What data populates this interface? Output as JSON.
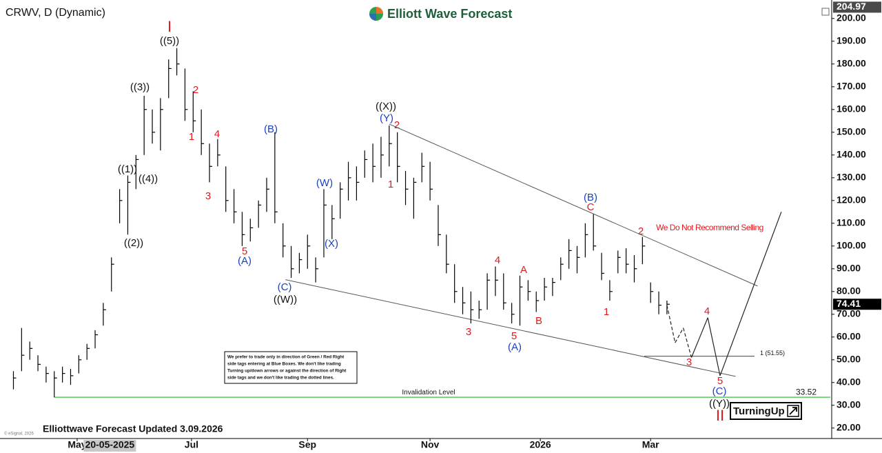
{
  "chart_data": {
    "type": "ohlc",
    "title": "CRWV, D (Dynamic)",
    "x": [
      0,
      1,
      2,
      3,
      4,
      5,
      6,
      7,
      8,
      9,
      10,
      11,
      12,
      13,
      14,
      15,
      16,
      17,
      18,
      19,
      20,
      21,
      22,
      23,
      24,
      25,
      26,
      27,
      28,
      29,
      30,
      31,
      32,
      33,
      34,
      35,
      36,
      37,
      38,
      39,
      40,
      41,
      42,
      43,
      44,
      45,
      46,
      47,
      48,
      49,
      50,
      51,
      52,
      53,
      54,
      55,
      56,
      57,
      58,
      59,
      60,
      61,
      62,
      63,
      64,
      65,
      66,
      67,
      68,
      69,
      70,
      71,
      72,
      73,
      74,
      75,
      76,
      77,
      78,
      79,
      80
    ],
    "high": [
      45,
      64,
      58,
      52,
      47,
      45,
      47,
      46,
      52,
      57,
      63,
      75,
      95,
      125,
      131,
      140,
      166,
      160,
      165,
      182,
      187,
      178,
      168,
      160,
      145,
      147,
      135,
      125,
      115,
      112,
      120,
      130,
      150,
      110,
      100,
      97,
      105,
      95,
      125,
      118,
      128,
      137,
      135,
      142,
      145,
      148,
      153,
      150,
      133,
      130,
      141,
      137,
      118,
      105,
      92,
      82,
      80,
      76,
      88,
      91,
      88,
      75,
      87,
      85,
      80,
      86,
      86,
      95,
      103,
      100,
      110,
      114,
      97,
      85,
      98,
      99,
      96,
      104,
      84,
      80,
      76
    ],
    "low": [
      37,
      45,
      50,
      45,
      40,
      33.5,
      40,
      39,
      44,
      50,
      55,
      65,
      80,
      110,
      105,
      125,
      140,
      145,
      142,
      165,
      175,
      155,
      150,
      140,
      128,
      135,
      115,
      110,
      100,
      102,
      108,
      115,
      110,
      95,
      86,
      88,
      90,
      84,
      95,
      103,
      112,
      120,
      120,
      130,
      128,
      130,
      135,
      128,
      118,
      112,
      128,
      120,
      100,
      88,
      75,
      70,
      66,
      68,
      72,
      78,
      72,
      66,
      65,
      76,
      71,
      76,
      78,
      85,
      90,
      88,
      95,
      98,
      85,
      76,
      88,
      88,
      84,
      92,
      75,
      70,
      70
    ],
    "close": [
      42,
      52,
      55,
      48,
      44,
      42,
      44,
      43,
      50,
      55,
      61,
      72,
      92,
      120,
      128,
      138,
      160,
      150,
      160,
      178,
      180,
      160,
      155,
      145,
      135,
      140,
      120,
      115,
      105,
      108,
      118,
      125,
      115,
      100,
      90,
      94,
      100,
      90,
      118,
      112,
      125,
      130,
      128,
      138,
      135,
      140,
      145,
      135,
      125,
      128,
      135,
      125,
      105,
      92,
      80,
      75,
      72,
      72,
      85,
      85,
      75,
      70,
      82,
      80,
      76,
      82,
      84,
      92,
      98,
      95,
      105,
      100,
      88,
      80,
      95,
      92,
      90,
      100,
      80,
      74,
      74.41
    ],
    "color": "#000000",
    "projection": {
      "x": [
        80,
        81,
        82,
        83,
        85,
        86.5,
        94
      ],
      "values": [
        74,
        57.5,
        64,
        51,
        68.5,
        43,
        115
      ]
    },
    "trendlines": [
      {
        "x": [
          46,
          91.1
        ],
        "values": [
          153.6,
          82.4
        ]
      },
      {
        "x": [
          33.3,
          88.4
        ],
        "values": [
          85.2,
          42.7
        ]
      }
    ],
    "invalidation": {
      "label": "Invalidation Level",
      "value": 33.52,
      "color": "#5cc85c"
    },
    "fib_level": {
      "label": "1 (51.55)",
      "value": 51.55
    },
    "top_label": 204.97,
    "cursor": {
      "x": 11.8,
      "label": "20-05-2025"
    },
    "xlim": [
      -0.8,
      100
    ],
    "xticks": [
      {
        "value": 7.8,
        "label": "May"
      },
      {
        "value": 21.8,
        "label": "Jul"
      },
      {
        "value": 36,
        "label": "Sep"
      },
      {
        "value": 51,
        "label": "Nov"
      },
      {
        "value": 64.5,
        "label": "2026"
      },
      {
        "value": 78,
        "label": "Mar"
      }
    ],
    "ylim": [
      16,
      206
    ],
    "yticks": [
      {
        "value": 20,
        "label": "20.00"
      },
      {
        "value": 30,
        "label": "30.00"
      },
      {
        "value": 40,
        "label": "40.00"
      },
      {
        "value": 50,
        "label": "50.00"
      },
      {
        "value": 60,
        "label": "60.00"
      },
      {
        "value": 70,
        "label": "70.00"
      },
      {
        "value": 80,
        "label": "80.00"
      },
      {
        "value": 90,
        "label": "90.00"
      },
      {
        "value": 100,
        "label": "100.00"
      },
      {
        "value": 110,
        "label": "110.00"
      },
      {
        "value": 120,
        "label": "120.00"
      },
      {
        "value": 130,
        "label": "130.00"
      },
      {
        "value": 140,
        "label": "140.00"
      },
      {
        "value": 150,
        "label": "150.00"
      },
      {
        "value": 160,
        "label": "160.00"
      },
      {
        "value": 170,
        "label": "170.00"
      },
      {
        "value": 180,
        "label": "180.00"
      },
      {
        "value": 190,
        "label": "190.00"
      },
      {
        "value": 200,
        "label": "200.00"
      }
    ],
    "annotations": [
      {
        "text": "I",
        "color": "#e0191f"
      },
      {
        "text": "2",
        "color": "#e0191f"
      },
      {
        "text": "1",
        "color": "#e0191f"
      },
      {
        "text": "4",
        "color": "#e0191f"
      },
      {
        "text": "3",
        "color": "#e0191f"
      },
      {
        "text": "5",
        "color": "#e0191f"
      },
      {
        "text": "2",
        "color": "#e0191f"
      },
      {
        "text": "1",
        "color": "#e0191f"
      },
      {
        "text": "4",
        "color": "#e0191f"
      },
      {
        "text": "A",
        "color": "#e0191f"
      },
      {
        "text": "3",
        "color": "#e0191f"
      },
      {
        "text": "5",
        "color": "#e0191f"
      },
      {
        "text": "B",
        "color": "#e0191f"
      },
      {
        "text": "C",
        "color": "#e0191f"
      },
      {
        "text": "1",
        "color": "#e0191f"
      },
      {
        "text": "2",
        "color": "#e0191f"
      },
      {
        "text": "3",
        "color": "#e0191f"
      },
      {
        "text": "4",
        "color": "#e0191f"
      },
      {
        "text": "5",
        "color": "#e0191f"
      },
      {
        "text": "II",
        "color": "#e0191f"
      },
      {
        "text": "((5))",
        "color": "#111111"
      },
      {
        "text": "((3))",
        "color": "#111111"
      },
      {
        "text": "((1))",
        "color": "#111111"
      },
      {
        "text": "((4))",
        "color": "#111111"
      },
      {
        "text": "((2))",
        "color": "#111111"
      },
      {
        "text": "((W))",
        "color": "#111111"
      },
      {
        "text": "((X))",
        "color": "#111111"
      },
      {
        "text": "((Y))",
        "color": "#111111"
      },
      {
        "text": "(B)",
        "color": "#1a3fbf"
      },
      {
        "text": "(A)",
        "color": "#1a3fbf"
      },
      {
        "text": "(C)",
        "color": "#1a3fbf"
      },
      {
        "text": "(W)",
        "color": "#1a3fbf"
      },
      {
        "text": "(X)",
        "color": "#1a3fbf"
      },
      {
        "text": "(Y)",
        "color": "#1a3fbf"
      },
      {
        "text": "(B)",
        "color": "#1a3fbf"
      },
      {
        "text": "(A)",
        "color": "#1a3fbf"
      },
      {
        "text": "(C)",
        "color": "#1a3fbf"
      },
      {
        "text": "We Do Not Recommend Selling",
        "color": "#e0191f"
      }
    ]
  },
  "logo": "Elliott Wave Forecast",
  "footer": "Elliottwave Forecast Updated 3.09.2026",
  "credit": "© eSignal, 2026",
  "badge": "TurningUp",
  "notice": [
    "We prefer to trade only in direction of Green / Red Right",
    "side tags entering at Blue Boxes. We don't like trading",
    "Turning up/down arrows or against the direction of Right",
    "side tags and we don't like trading the dotted lines."
  ]
}
